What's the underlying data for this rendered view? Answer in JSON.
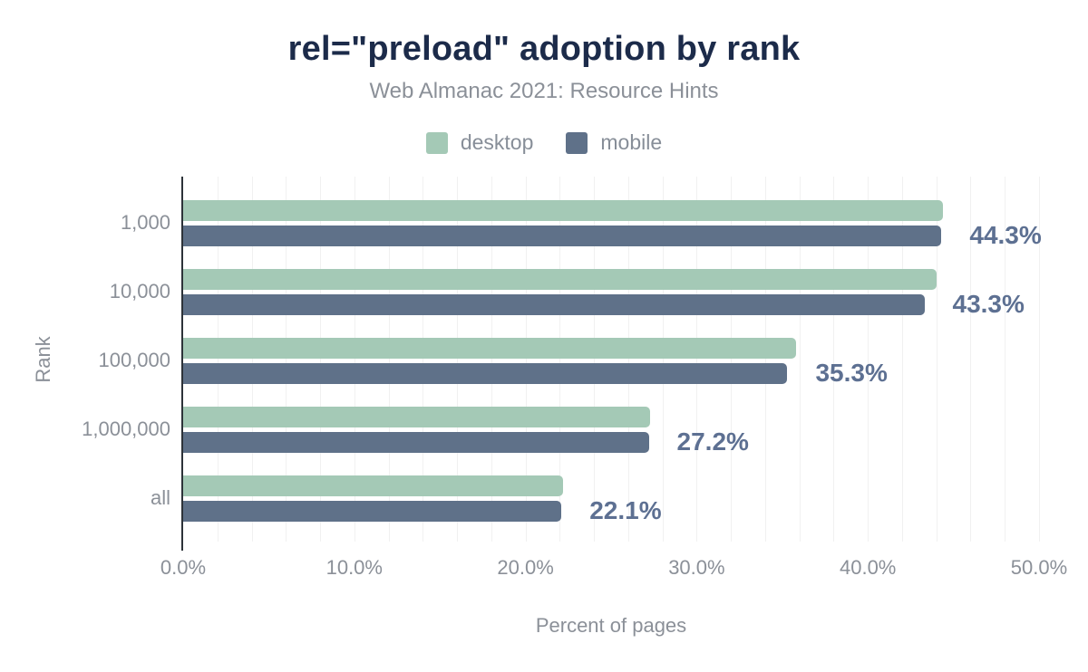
{
  "title": "rel=\"preload\" adoption by rank",
  "subtitle": "Web Almanac 2021: Resource Hints",
  "legend": [
    {
      "label": "desktop",
      "color": "#a4c9b6"
    },
    {
      "label": "mobile",
      "color": "#5f7189"
    }
  ],
  "chart_data": {
    "type": "bar",
    "orientation": "horizontal",
    "title": "rel=\"preload\" adoption by rank",
    "subtitle": "Web Almanac 2021: Resource Hints",
    "categories": [
      "1,000",
      "10,000",
      "100,000",
      "1,000,000",
      "all"
    ],
    "series": [
      {
        "name": "desktop",
        "color": "#a4c9b6",
        "values": [
          44.4,
          44.0,
          35.8,
          27.3,
          22.2
        ]
      },
      {
        "name": "mobile",
        "color": "#5f7189",
        "values": [
          44.3,
          43.3,
          35.3,
          27.2,
          22.1
        ]
      }
    ],
    "value_labels": [
      "44.3%",
      "43.3%",
      "35.3%",
      "27.2%",
      "22.1%"
    ],
    "value_label_series": "mobile",
    "xlabel": "Percent of pages",
    "ylabel": "Rank",
    "xlim": [
      0,
      50
    ],
    "x_ticks": [
      "0.0%",
      "10.0%",
      "20.0%",
      "30.0%",
      "40.0%",
      "50.0%"
    ],
    "grid": "vertical lines every 2%",
    "legend_position": "top"
  },
  "colors": {
    "title": "#1c2b4a",
    "muted_text": "#8b9098",
    "value_label": "#5d7092",
    "gridline": "#f1f1f1",
    "axis_line": "#2d3339",
    "background": "#ffffff"
  }
}
